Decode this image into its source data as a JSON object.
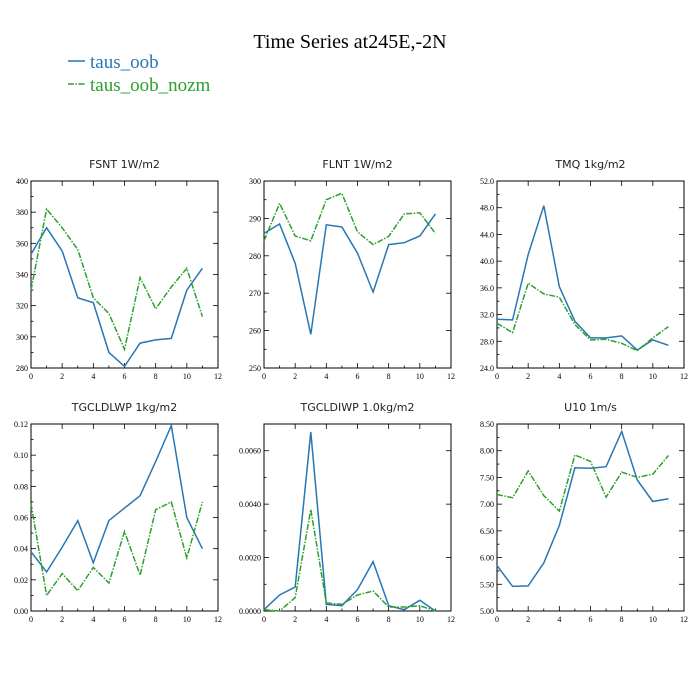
{
  "figure": {
    "title": "Time Series at245E,-2N",
    "colors": {
      "series1": "#2777b4",
      "series2": "#2ca02c"
    }
  },
  "legend": [
    {
      "name": "taus_oob",
      "style": "solid",
      "color": "#2777b4"
    },
    {
      "name": "taus_oob_nozm",
      "style": "dashdot",
      "color": "#2ca02c"
    }
  ],
  "chart_data": [
    {
      "type": "line",
      "title": "FSNT   1W/m2",
      "x": [
        0,
        1,
        2,
        3,
        4,
        5,
        6,
        7,
        8,
        9,
        10,
        11
      ],
      "xlim": [
        0,
        12
      ],
      "xticks": [
        0,
        2,
        4,
        6,
        8,
        10,
        12
      ],
      "xtick_labels": [
        "0",
        "2",
        "4",
        "6",
        "8",
        "10",
        "12"
      ],
      "ylim": [
        280,
        400
      ],
      "yticks": [
        280,
        300,
        320,
        340,
        360,
        380,
        400
      ],
      "ytick_labels": [
        "280",
        "300",
        "320",
        "340",
        "360",
        "380",
        "400"
      ],
      "series": [
        {
          "name": "taus_oob",
          "values": [
            353,
            370,
            355,
            325,
            322,
            290,
            281,
            296,
            298,
            299,
            330,
            344
          ]
        },
        {
          "name": "taus_oob_nozm",
          "values": [
            330,
            382,
            370,
            356,
            325,
            315,
            292,
            338,
            318,
            332,
            344,
            313
          ]
        }
      ]
    },
    {
      "type": "line",
      "title": "FLNT   1W/m2",
      "x": [
        0,
        1,
        2,
        3,
        4,
        5,
        6,
        7,
        8,
        9,
        10,
        11
      ],
      "xlim": [
        0,
        12
      ],
      "xticks": [
        0,
        2,
        4,
        6,
        8,
        10,
        12
      ],
      "xtick_labels": [
        "0",
        "2",
        "4",
        "6",
        "8",
        "10",
        "12"
      ],
      "ylim": [
        250,
        300
      ],
      "yticks": [
        250,
        260,
        270,
        280,
        290,
        300
      ],
      "ytick_labels": [
        "250",
        "260",
        "270",
        "280",
        "290",
        "300"
      ],
      "series": [
        {
          "name": "taus_oob",
          "values": [
            286,
            288.5,
            278,
            259,
            288.3,
            287.7,
            280.7,
            270.3,
            283,
            283.5,
            285.3,
            291.2
          ]
        },
        {
          "name": "taus_oob_nozm",
          "values": [
            284,
            294,
            285.3,
            284,
            295,
            296.7,
            286.4,
            283,
            285.2,
            291.2,
            291.5,
            286
          ]
        }
      ]
    },
    {
      "type": "line",
      "title": "TMQ   1kg/m2",
      "x": [
        0,
        1,
        2,
        3,
        4,
        5,
        6,
        7,
        8,
        9,
        10,
        11
      ],
      "xlim": [
        0,
        12
      ],
      "xticks": [
        0,
        2,
        4,
        6,
        8,
        10,
        12
      ],
      "xtick_labels": [
        "0",
        "2",
        "4",
        "6",
        "8",
        "10",
        "12"
      ],
      "ylim": [
        24,
        52
      ],
      "yticks": [
        24,
        28,
        32,
        36,
        40,
        44,
        48,
        52
      ],
      "ytick_labels": [
        "24.0",
        "28.0",
        "32.0",
        "36.0",
        "40.0",
        "44.0",
        "48.0",
        "52.0"
      ],
      "series": [
        {
          "name": "taus_oob",
          "values": [
            31.3,
            31.2,
            41,
            48.3,
            36.2,
            31,
            28.5,
            28.5,
            28.8,
            26.7,
            28.2,
            27.4
          ]
        },
        {
          "name": "taus_oob_nozm",
          "values": [
            30.7,
            29.3,
            36.7,
            35.1,
            34.6,
            30.5,
            28.2,
            28.3,
            27.7,
            26.6,
            28.5,
            30.2
          ]
        }
      ]
    },
    {
      "type": "line",
      "title": "TGCLDLWP   1kg/m2",
      "x": [
        0,
        1,
        2,
        3,
        4,
        5,
        6,
        7,
        8,
        9,
        10,
        11
      ],
      "xlim": [
        0,
        12
      ],
      "xticks": [
        0,
        2,
        4,
        6,
        8,
        10,
        12
      ],
      "xtick_labels": [
        "0",
        "2",
        "4",
        "6",
        "8",
        "10",
        "12"
      ],
      "ylim": [
        0,
        0.12
      ],
      "yticks": [
        0,
        0.02,
        0.04,
        0.06,
        0.08,
        0.1,
        0.12
      ],
      "ytick_labels": [
        "0.00",
        "0.02",
        "0.04",
        "0.06",
        "0.08",
        "0.10",
        "0.12"
      ],
      "series": [
        {
          "name": "taus_oob",
          "values": [
            0.038,
            0.025,
            0.041,
            0.058,
            0.031,
            0.058,
            0.066,
            0.074,
            0.096,
            0.119,
            0.06,
            0.04
          ]
        },
        {
          "name": "taus_oob_nozm",
          "values": [
            0.069,
            0.01,
            0.024,
            0.013,
            0.028,
            0.018,
            0.051,
            0.023,
            0.065,
            0.07,
            0.034,
            0.07
          ]
        }
      ]
    },
    {
      "type": "line",
      "title": "TGCLDIWP   1.0kg/m2",
      "x": [
        0,
        1,
        2,
        3,
        4,
        5,
        6,
        7,
        8,
        9,
        10,
        11
      ],
      "xlim": [
        0,
        12
      ],
      "xticks": [
        0,
        2,
        4,
        6,
        8,
        10,
        12
      ],
      "xtick_labels": [
        "0",
        "2",
        "4",
        "6",
        "8",
        "10",
        "12"
      ],
      "ylim": [
        0,
        0.007
      ],
      "yticks": [
        0,
        0.002,
        0.004,
        0.006
      ],
      "ytick_labels": [
        "0.0000",
        "0.0020",
        "0.0040",
        "0.0060"
      ],
      "series": [
        {
          "name": "taus_oob",
          "values": [
            5e-05,
            0.0006,
            0.0009,
            0.0067,
            0.00025,
            0.0002,
            0.0008,
            0.00185,
            0.0002,
            5e-05,
            0.0004,
            0.0
          ]
        },
        {
          "name": "taus_oob_nozm",
          "values": [
            5e-05,
            0.0,
            0.0005,
            0.0038,
            0.0003,
            0.00025,
            0.0006,
            0.00075,
            0.00015,
            0.00015,
            0.0002,
            0.0
          ]
        }
      ]
    },
    {
      "type": "line",
      "title": "U10   1m/s",
      "x": [
        0,
        1,
        2,
        3,
        4,
        5,
        6,
        7,
        8,
        9,
        10,
        11
      ],
      "xlim": [
        0,
        12
      ],
      "xticks": [
        0,
        2,
        4,
        6,
        8,
        10,
        12
      ],
      "xtick_labels": [
        "0",
        "2",
        "4",
        "6",
        "8",
        "10",
        "12"
      ],
      "ylim": [
        5,
        8.5
      ],
      "yticks": [
        5,
        5.5,
        6,
        6.5,
        7,
        7.5,
        8,
        8.5
      ],
      "ytick_labels": [
        "5.00",
        "5.50",
        "6.00",
        "6.50",
        "7.00",
        "7.50",
        "8.00",
        "8.50"
      ],
      "series": [
        {
          "name": "taus_oob",
          "values": [
            5.85,
            5.46,
            5.47,
            5.9,
            6.6,
            7.68,
            7.67,
            7.7,
            8.36,
            7.45,
            7.05,
            7.1
          ]
        },
        {
          "name": "taus_oob_nozm",
          "values": [
            7.18,
            7.12,
            7.62,
            7.16,
            6.87,
            7.92,
            7.8,
            7.13,
            7.6,
            7.5,
            7.56,
            7.91
          ]
        }
      ]
    }
  ]
}
